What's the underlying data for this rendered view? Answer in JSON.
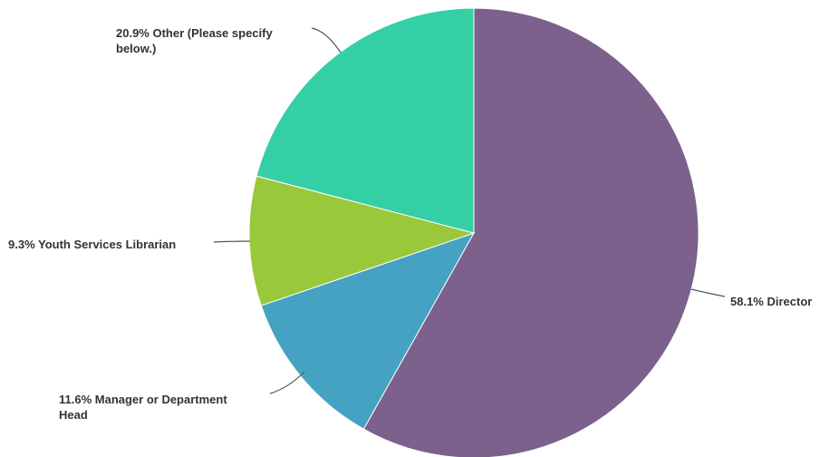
{
  "chart_data": {
    "type": "pie",
    "title": "",
    "start_angle_deg": 0,
    "direction": "clockwise",
    "slices": [
      {
        "label": "58.1% Director",
        "value": 58.1,
        "color": "#7b618c"
      },
      {
        "label": "11.6% Manager or Department Head",
        "value": 11.6,
        "color": "#45a2c2"
      },
      {
        "label": "9.3% Youth Services Librarian",
        "value": 9.3,
        "color": "#99c83b"
      },
      {
        "label": "20.9% Other (Please specify below.)",
        "value": 20.9,
        "color": "#35cfa5"
      }
    ]
  }
}
